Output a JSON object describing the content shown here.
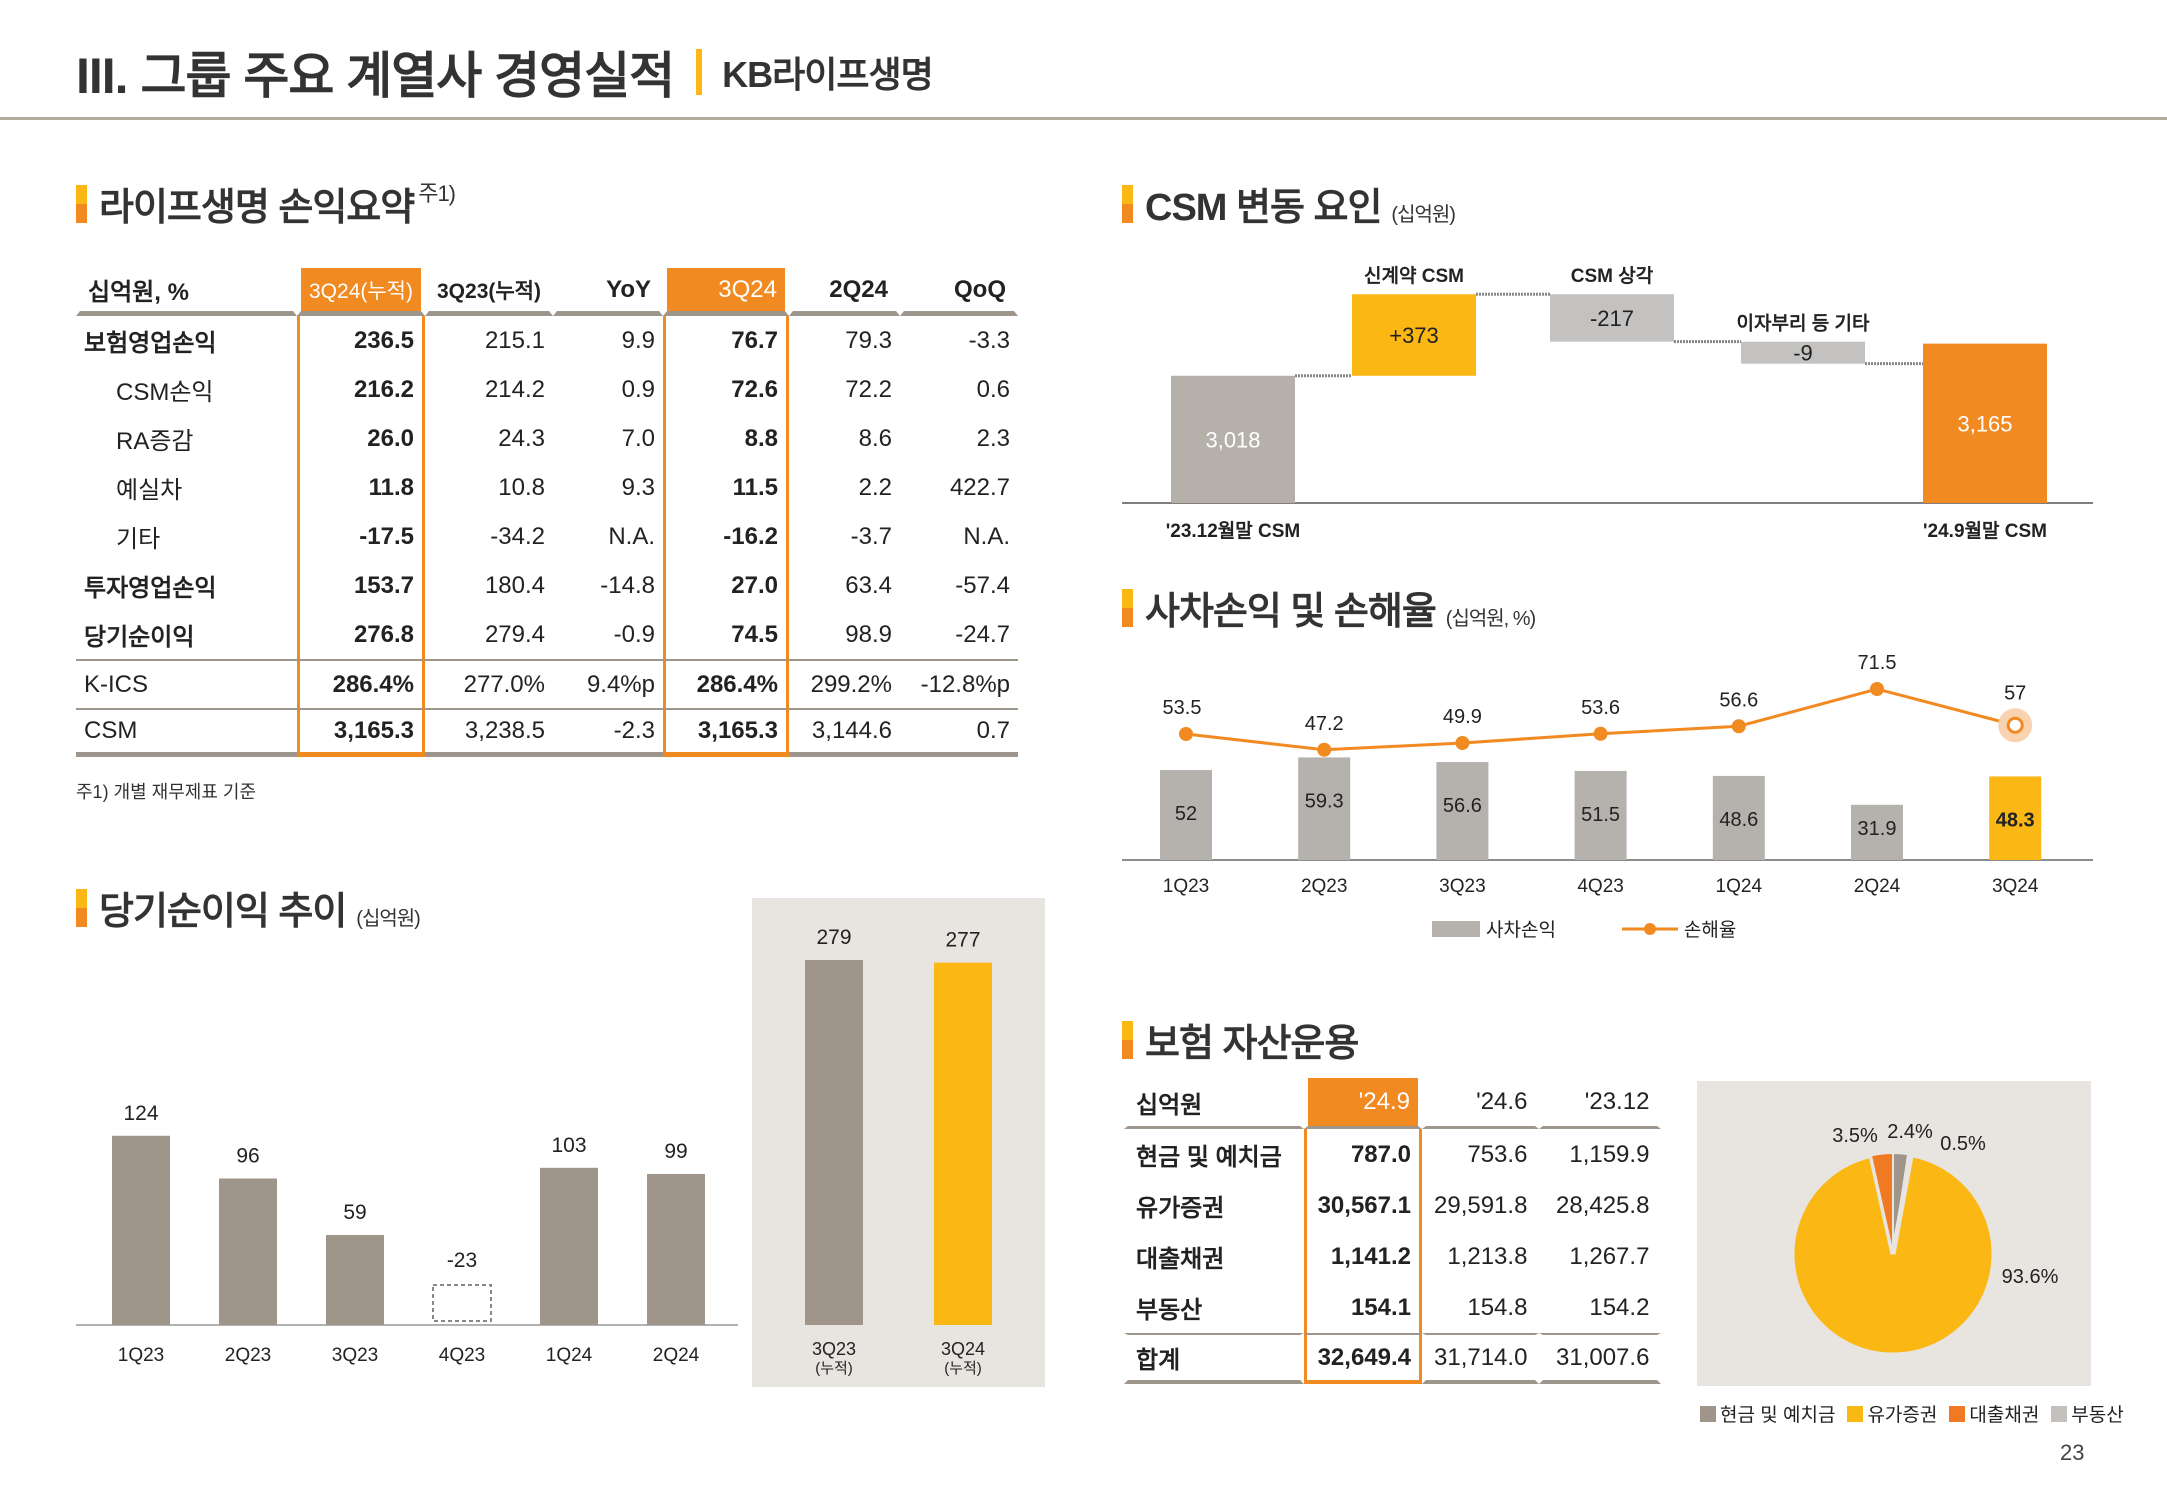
{
  "header": {
    "title": "III. 그룹 주요 계열사 경영실적",
    "subtitle": "KB라이프생명"
  },
  "profit": {
    "heading": "라이프생명 손익요약",
    "note_mark": "주1)",
    "columns": [
      "십억원, %",
      "3Q24(누적)",
      "3Q23(누적)",
      "YoY",
      "3Q24",
      "2Q24",
      "QoQ"
    ],
    "rows": [
      {
        "label": "보험영업손익",
        "style": "bold",
        "cells": [
          "236.5",
          "215.1",
          "9.9",
          "76.7",
          "79.3",
          "-3.3"
        ]
      },
      {
        "label": "CSM손익",
        "style": "indent",
        "cells": [
          "216.2",
          "214.2",
          "0.9",
          "72.6",
          "72.2",
          "0.6"
        ]
      },
      {
        "label": "RA증감",
        "style": "indent",
        "cells": [
          "26.0",
          "24.3",
          "7.0",
          "8.8",
          "8.6",
          "2.3"
        ]
      },
      {
        "label": "예실차",
        "style": "indent",
        "cells": [
          "11.8",
          "10.8",
          "9.3",
          "11.5",
          "2.2",
          "422.7"
        ]
      },
      {
        "label": "기타",
        "style": "indent",
        "cells": [
          "-17.5",
          "-34.2",
          "N.A.",
          "-16.2",
          "-3.7",
          "N.A."
        ]
      },
      {
        "label": "투자영업손익",
        "style": "bold",
        "cells": [
          "153.7",
          "180.4",
          "-14.8",
          "27.0",
          "63.4",
          "-57.4"
        ]
      },
      {
        "label": "당기순이익",
        "style": "bold",
        "cells": [
          "276.8",
          "279.4",
          "-0.9",
          "74.5",
          "98.9",
          "-24.7"
        ]
      },
      {
        "label": "K-ICS",
        "style": "sep",
        "cells": [
          "286.4%",
          "277.0%",
          "9.4%p",
          "286.4%",
          "299.2%",
          "-12.8%p"
        ]
      },
      {
        "label": "CSM",
        "style": "sep",
        "cells": [
          "3,165.3",
          "3,238.5",
          "-2.3",
          "3,165.3",
          "3,144.6",
          "0.7"
        ]
      }
    ],
    "footnote": "주1) 개별 재무제표 기준"
  },
  "net_income": {
    "heading": "당기순이익 추이",
    "unit": "(십억원)"
  },
  "csm": {
    "heading": "CSM 변동 요인",
    "unit": "(십억원)"
  },
  "loss": {
    "heading": "사차손익 및 손해율",
    "unit": "(십억원, %)"
  },
  "assets": {
    "heading": "보험 자산운용",
    "columns": [
      "십억원",
      "'24.9",
      "'24.6",
      "'23.12"
    ],
    "rows": [
      {
        "label": "현금 및 예치금",
        "cells": [
          "787.0",
          "753.6",
          "1,159.9"
        ]
      },
      {
        "label": "유가증권",
        "cells": [
          "30,567.1",
          "29,591.8",
          "28,425.8"
        ]
      },
      {
        "label": "대출채권",
        "cells": [
          "1,141.2",
          "1,213.8",
          "1,267.7"
        ]
      },
      {
        "label": "부동산",
        "cells": [
          "154.1",
          "154.8",
          "154.2"
        ]
      },
      {
        "label": "합계",
        "cells": [
          "32,649.4",
          "31,714.0",
          "31,007.6"
        ]
      }
    ]
  },
  "page_number": "23",
  "colors": {
    "orange": "#f28a22",
    "yellow": "#fbb714",
    "warm_gray": "#a0958a",
    "gray": "#b5b1ad",
    "panel": "#e8e4df"
  },
  "chart_data": [
    {
      "type": "bar",
      "id": "net_income",
      "categories": [
        "1Q23",
        "2Q23",
        "3Q23",
        "4Q23",
        "1Q24",
        "2Q24"
      ],
      "values": [
        124,
        96,
        59,
        -23,
        103,
        99
      ],
      "cumulative": {
        "categories": [
          "3Q23\n(누적)",
          "3Q24\n(누적)"
        ],
        "values": [
          279,
          277
        ]
      }
    },
    {
      "type": "waterfall",
      "id": "csm",
      "steps": [
        {
          "label": "'23.12월말 CSM",
          "value": 3018,
          "display": "3,018",
          "kind": "total"
        },
        {
          "label": "신계약 CSM",
          "value": 373,
          "display": "+373",
          "kind": "increase"
        },
        {
          "label": "CSM 상각",
          "value": -217,
          "display": "-217",
          "kind": "decrease"
        },
        {
          "label": "이자부리 등 기타",
          "value": -9,
          "display": "-9",
          "kind": "decrease"
        },
        {
          "label": "'24.9월말 CSM",
          "value": 3165,
          "display": "3,165",
          "kind": "total"
        }
      ]
    },
    {
      "type": "bar+line",
      "id": "loss",
      "categories": [
        "1Q23",
        "2Q23",
        "3Q23",
        "4Q23",
        "1Q24",
        "2Q24",
        "3Q24"
      ],
      "series": [
        {
          "name": "사차손익",
          "type": "bar",
          "values": [
            52.0,
            59.3,
            56.6,
            51.5,
            48.6,
            31.9,
            48.3
          ]
        },
        {
          "name": "손해율",
          "type": "line",
          "values": [
            53.5,
            47.2,
            49.9,
            53.6,
            56.6,
            71.5,
            57.0
          ]
        }
      ],
      "legend": "bottom"
    },
    {
      "type": "pie",
      "id": "assets_pie",
      "slices": [
        {
          "name": "현금 및 예치금",
          "value": 2.4,
          "label": "2.4%",
          "color": "#a0958a"
        },
        {
          "name": "부동산",
          "value": 0.5,
          "label": "0.5%",
          "color": "#c4c0bc"
        },
        {
          "name": "유가증권",
          "value": 93.6,
          "label": "93.6%",
          "color": "#fbb714"
        },
        {
          "name": "대출채권",
          "value": 3.5,
          "label": "3.5%",
          "color": "#f07a22"
        }
      ],
      "legend": "bottom"
    }
  ]
}
